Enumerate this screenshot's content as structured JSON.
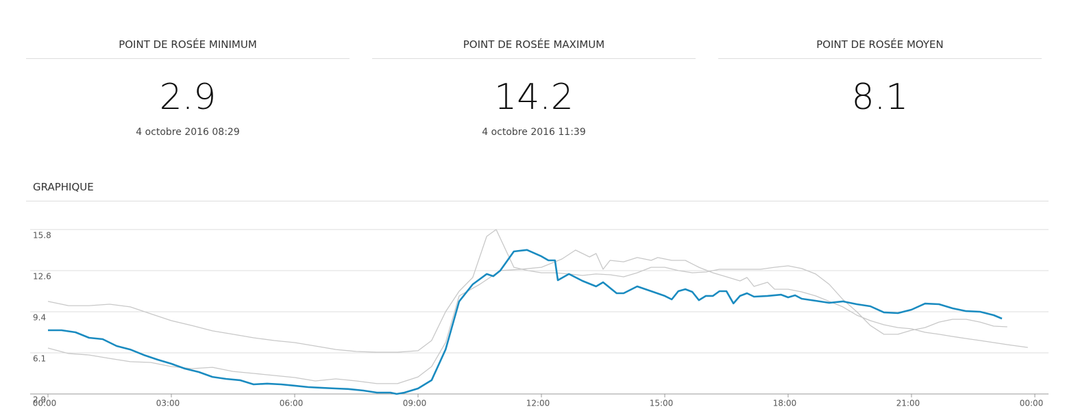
{
  "stats": [
    {
      "title": "POINT DE ROSÉE MINIMUM",
      "value": 2.9,
      "date": "4 octobre 2016 08:29"
    },
    {
      "title": "POINT DE ROSÉE MAXIMUM",
      "value": 14.2,
      "date": "4 octobre 2016 11:39"
    },
    {
      "title": "POINT DE ROSÉE MOYEN",
      "value": 8.1
    }
  ],
  "section_title": "GRAPHIQUE",
  "chart_data": {
    "type": "line",
    "xlim": [
      0,
      24
    ],
    "xticks": [
      {
        "value": 0,
        "label": "00:00"
      },
      {
        "value": 3,
        "label": "03:00"
      },
      {
        "value": 6,
        "label": "06:00"
      },
      {
        "value": 9,
        "label": "09:00"
      },
      {
        "value": 12,
        "label": "12:00"
      },
      {
        "value": 15,
        "label": "15:00"
      },
      {
        "value": 18,
        "label": "18:00"
      },
      {
        "value": 21,
        "label": "21:00"
      },
      {
        "value": 24,
        "label": "00:00"
      }
    ],
    "ylim": [
      2.9,
      15.8
    ],
    "yticks": [
      2.9,
      {
        "value": 6.125,
        "label": "6.1"
      },
      {
        "value": 9.35,
        "label": "9.4"
      },
      {
        "value": 12.575,
        "label": "12.6"
      },
      15.8
    ],
    "grid": true,
    "series": [
      {
        "color": "#1a8bc0",
        "x": [
          0,
          0.33,
          0.67,
          1.0,
          1.33,
          1.67,
          2.0,
          2.33,
          2.67,
          3.0,
          3.33,
          3.67,
          4.0,
          4.33,
          4.67,
          5.0,
          5.33,
          5.67,
          6.0,
          6.33,
          6.67,
          7.0,
          7.33,
          7.67,
          8.0,
          8.33,
          8.48,
          8.67,
          9.0,
          9.33,
          9.67,
          10.0,
          10.33,
          10.67,
          10.83,
          11.0,
          11.33,
          11.65,
          12.0,
          12.17,
          12.33,
          12.4,
          12.67,
          13.0,
          13.33,
          13.5,
          13.83,
          14.0,
          14.33,
          14.67,
          15.0,
          15.17,
          15.33,
          15.5,
          15.67,
          15.83,
          16.0,
          16.17,
          16.33,
          16.5,
          16.67,
          16.83,
          17.0,
          17.17,
          17.5,
          17.83,
          18.0,
          18.17,
          18.33,
          18.67,
          19.0,
          19.33,
          19.67,
          20.0,
          20.33,
          20.67,
          21.0,
          21.33,
          21.67,
          22.0,
          22.33,
          22.67,
          23.0,
          23.2
        ],
        "values": [
          7.9,
          7.9,
          7.74,
          7.31,
          7.2,
          6.66,
          6.39,
          5.96,
          5.59,
          5.27,
          4.89,
          4.62,
          4.24,
          4.08,
          3.98,
          3.65,
          3.71,
          3.65,
          3.55,
          3.44,
          3.38,
          3.33,
          3.28,
          3.17,
          3.01,
          3.01,
          2.9,
          3.01,
          3.33,
          3.98,
          6.39,
          10.16,
          11.5,
          12.31,
          12.14,
          12.58,
          14.08,
          14.2,
          13.7,
          13.38,
          13.38,
          11.82,
          12.31,
          11.77,
          11.34,
          11.66,
          10.8,
          10.8,
          11.34,
          10.96,
          10.59,
          10.32,
          10.96,
          11.12,
          10.91,
          10.26,
          10.59,
          10.59,
          10.96,
          10.96,
          10.0,
          10.59,
          10.8,
          10.53,
          10.59,
          10.69,
          10.48,
          10.64,
          10.37,
          10.21,
          10.05,
          10.16,
          9.94,
          9.78,
          9.3,
          9.24,
          9.51,
          9.99,
          9.94,
          9.62,
          9.4,
          9.35,
          9.08,
          8.81
        ]
      },
      {
        "color": "#c8c8c8",
        "x": [
          0,
          0.5,
          1.0,
          1.5,
          2.0,
          2.5,
          3.0,
          3.5,
          4.0,
          4.5,
          5.0,
          5.5,
          6.0,
          6.5,
          7.0,
          7.5,
          8.0,
          8.5,
          9.0,
          9.33,
          9.67,
          10.0,
          10.33,
          10.67,
          10.9,
          11.33,
          11.67,
          12.0,
          12.33,
          12.67,
          13.0,
          13.33,
          13.67,
          14.0,
          14.33,
          14.67,
          15.0,
          15.33,
          15.67,
          16.0,
          16.33,
          16.67,
          17.0,
          17.33,
          17.67,
          18.0,
          18.33,
          18.67,
          19.0,
          19.33,
          19.67,
          20.0,
          20.33,
          20.67,
          21.0,
          21.33,
          21.67,
          22.0,
          22.33,
          22.67,
          23.0,
          23.33
        ],
        "values": [
          10.16,
          9.83,
          9.83,
          9.94,
          9.73,
          9.19,
          8.65,
          8.27,
          7.85,
          7.58,
          7.31,
          7.09,
          6.93,
          6.66,
          6.39,
          6.23,
          6.18,
          6.18,
          6.29,
          7.09,
          9.35,
          10.96,
          12.04,
          15.26,
          15.8,
          12.84,
          12.58,
          12.41,
          12.41,
          12.31,
          12.2,
          12.31,
          12.25,
          12.09,
          12.41,
          12.84,
          12.84,
          12.58,
          12.41,
          12.47,
          12.68,
          12.68,
          12.68,
          12.68,
          12.84,
          12.95,
          12.74,
          12.31,
          11.5,
          10.32,
          9.35,
          8.27,
          7.58,
          7.58,
          7.9,
          8.11,
          8.54,
          8.76,
          8.76,
          8.54,
          8.22,
          8.17
        ]
      },
      {
        "color": "#c8c8c8",
        "x": [
          0,
          0.5,
          1.0,
          1.5,
          2.0,
          2.5,
          3.0,
          3.5,
          4.0,
          4.5,
          5.0,
          5.5,
          6.0,
          6.5,
          7.0,
          7.5,
          8.0,
          8.5,
          9.0,
          9.33,
          9.67,
          10.0,
          10.5,
          11.0,
          11.5,
          12.0,
          12.5,
          12.83,
          13.17,
          13.33,
          13.5,
          13.67,
          14.0,
          14.33,
          14.67,
          14.83,
          15.17,
          15.5,
          15.83,
          16.17,
          16.5,
          16.83,
          17.0,
          17.17,
          17.5,
          17.67,
          18.0,
          18.33,
          18.67,
          19.0,
          19.33,
          19.67,
          20.0,
          20.33,
          20.67,
          21.0,
          21.33,
          21.67,
          22.0,
          22.33,
          22.67,
          23.0,
          23.33,
          23.83
        ],
        "values": [
          6.5,
          6.07,
          5.96,
          5.69,
          5.43,
          5.37,
          5.05,
          4.89,
          4.99,
          4.67,
          4.51,
          4.35,
          4.19,
          3.92,
          4.08,
          3.92,
          3.71,
          3.71,
          4.24,
          5.05,
          6.93,
          10.59,
          11.5,
          12.58,
          12.68,
          12.84,
          13.49,
          14.19,
          13.65,
          13.92,
          12.68,
          13.38,
          13.27,
          13.6,
          13.38,
          13.6,
          13.38,
          13.38,
          12.84,
          12.41,
          12.09,
          11.77,
          12.04,
          11.34,
          11.66,
          11.12,
          11.12,
          10.91,
          10.59,
          10.16,
          9.73,
          9.08,
          8.65,
          8.33,
          8.11,
          8.01,
          7.74,
          7.58,
          7.41,
          7.25,
          7.09,
          6.93,
          6.77,
          6.55
        ]
      }
    ]
  }
}
